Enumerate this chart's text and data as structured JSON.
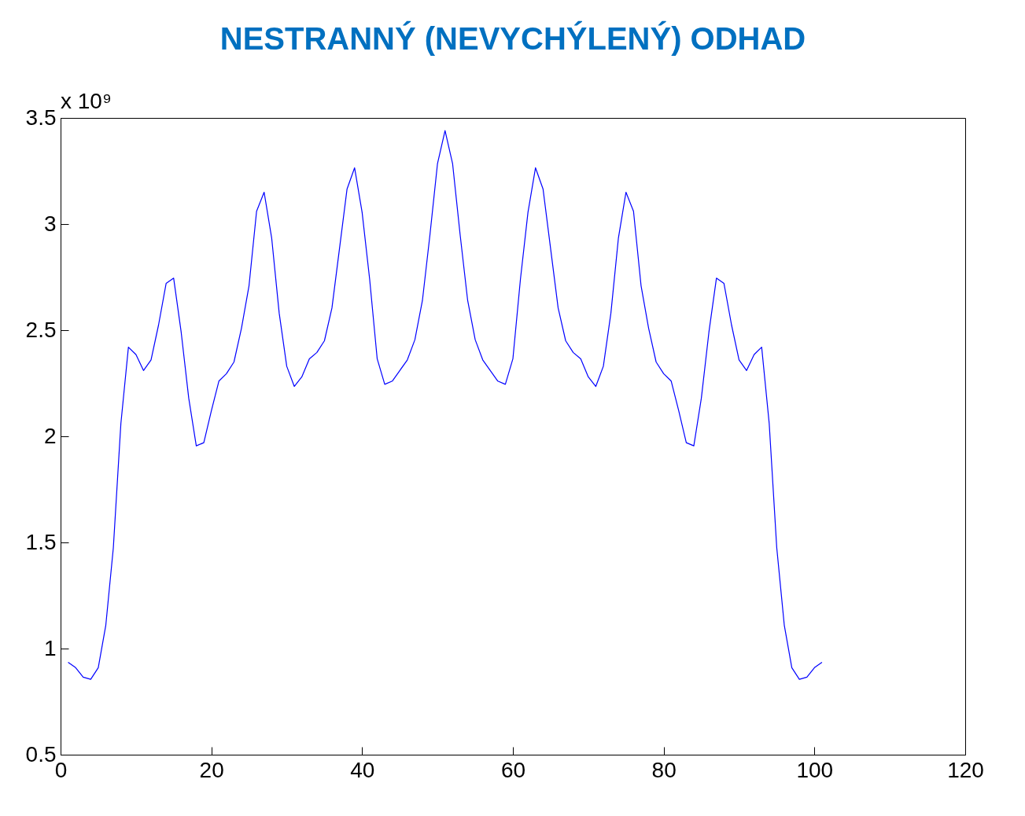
{
  "chart_data": {
    "type": "line",
    "title": "NESTRANNÝ (NEVYCHÝLENÝ) ODHAD",
    "annotations": [
      "x 10⁹"
    ],
    "x": [
      1,
      2,
      3,
      4,
      5,
      6,
      7,
      8,
      9,
      10,
      11,
      12,
      13,
      14,
      15,
      16,
      17,
      18,
      19,
      20,
      21,
      22,
      23,
      24,
      25,
      26,
      27,
      28,
      29,
      30,
      31,
      32,
      33,
      34,
      35,
      36,
      37,
      38,
      39,
      40,
      41,
      42,
      43,
      44,
      45,
      46,
      47,
      48,
      49,
      50,
      51,
      52,
      53,
      54,
      55,
      56,
      57,
      58,
      59,
      60,
      61,
      62,
      63,
      64,
      65,
      66,
      67,
      68,
      69,
      70,
      71,
      72,
      73,
      74,
      75,
      76,
      77,
      78,
      79,
      80,
      81,
      82,
      83,
      84,
      85,
      86,
      87,
      88,
      89,
      90,
      91,
      92,
      93,
      94,
      95,
      96,
      97,
      98,
      99,
      100,
      101
    ],
    "series": [
      {
        "color": "#0000ff",
        "values": [
          0.935,
          0.91,
          0.865,
          0.855,
          0.91,
          1.11,
          1.475,
          2.06,
          2.42,
          2.385,
          2.31,
          2.36,
          2.525,
          2.72,
          2.745,
          2.49,
          2.18,
          1.955,
          1.97,
          2.12,
          2.26,
          2.295,
          2.35,
          2.51,
          2.71,
          3.06,
          3.15,
          2.935,
          2.58,
          2.33,
          2.235,
          2.28,
          2.365,
          2.395,
          2.45,
          2.605,
          2.885,
          3.165,
          3.265,
          3.055,
          2.74,
          2.365,
          2.245,
          2.26,
          2.31,
          2.36,
          2.455,
          2.64,
          2.95,
          3.285,
          3.44,
          3.285,
          2.95,
          2.64,
          2.455,
          2.36,
          2.31,
          2.26,
          2.245,
          2.365,
          2.74,
          3.055,
          3.265,
          3.165,
          2.885,
          2.605,
          2.45,
          2.395,
          2.365,
          2.28,
          2.235,
          2.33,
          2.58,
          2.935,
          3.15,
          3.06,
          2.71,
          2.51,
          2.35,
          2.295,
          2.26,
          2.12,
          1.97,
          1.955,
          2.18,
          2.49,
          2.745,
          2.72,
          2.525,
          2.36,
          2.31,
          2.385,
          2.42,
          2.06,
          1.475,
          1.11,
          0.91,
          0.855,
          0.865,
          0.91,
          0.935
        ]
      }
    ],
    "xlim": [
      0,
      120
    ],
    "xticks": [
      0,
      20,
      40,
      60,
      80,
      100,
      120
    ],
    "ylim": [
      0.5,
      3.5
    ],
    "yticks": [
      0.5,
      1,
      1.5,
      2,
      2.5,
      3,
      3.5
    ],
    "grid": false,
    "marker": "none",
    "line_style": "solid"
  }
}
